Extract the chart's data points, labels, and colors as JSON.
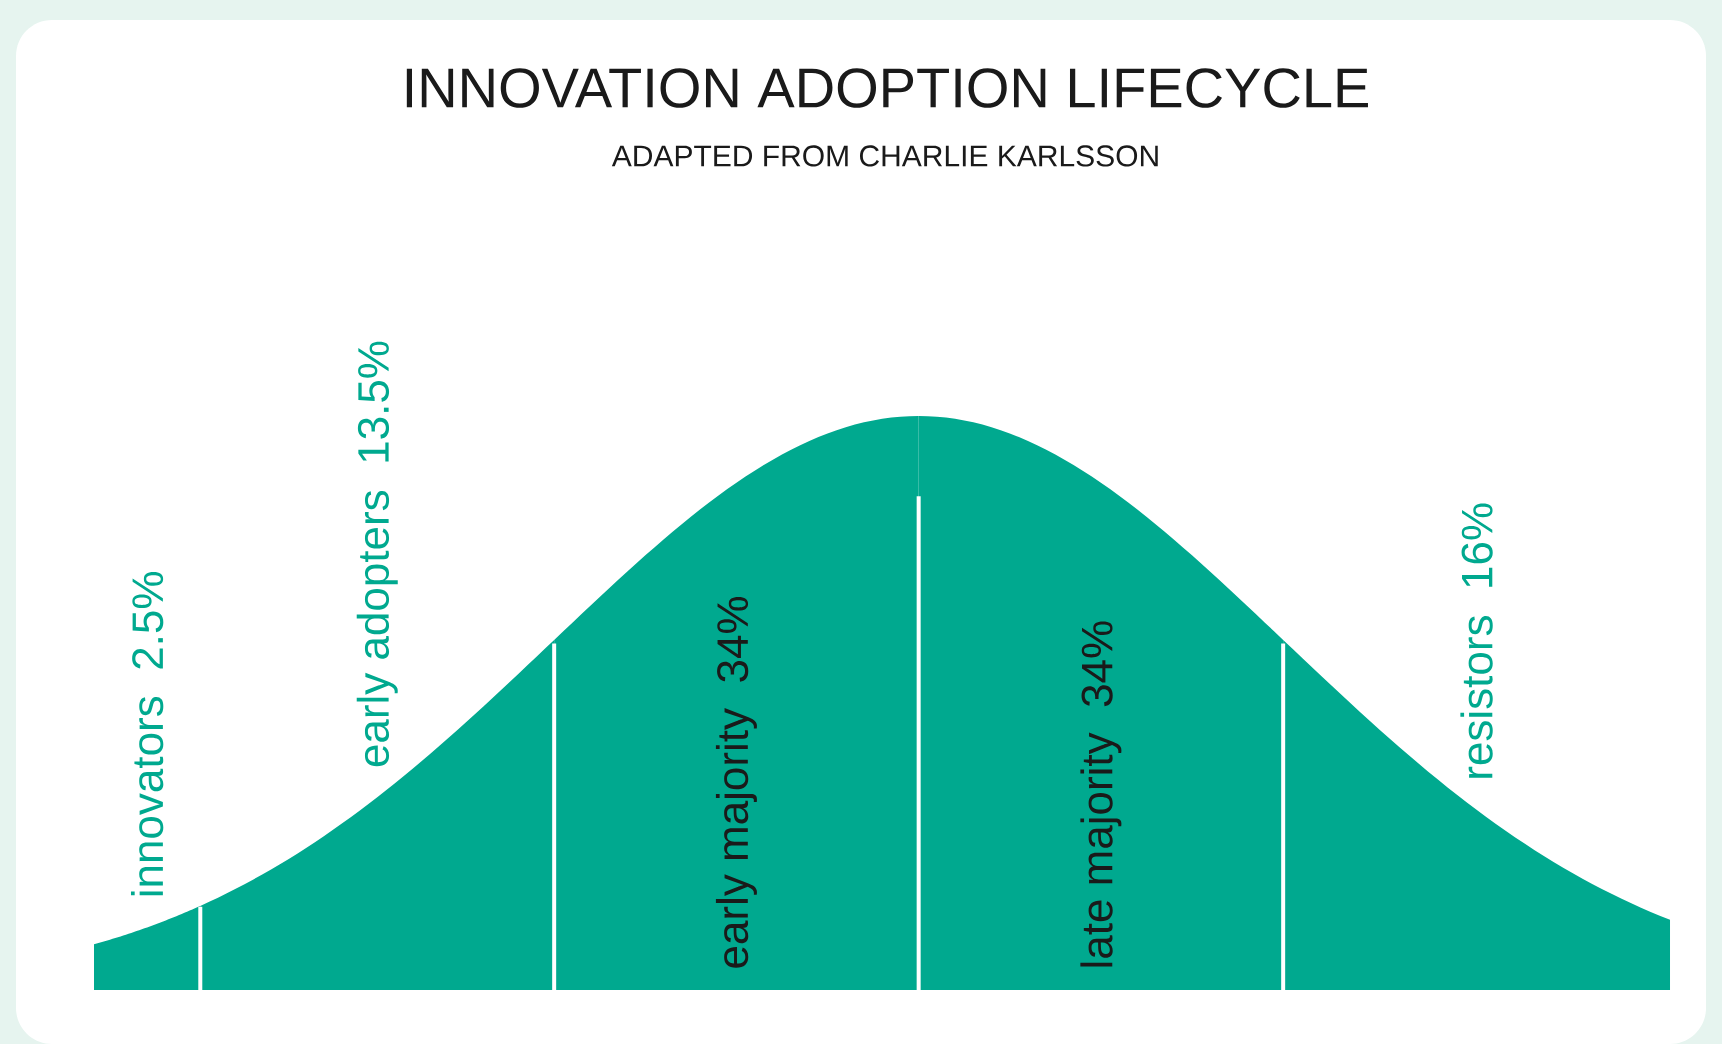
{
  "chart_data": {
    "type": "other",
    "title": "INNOVATION ADOPTION LIFECYCLE",
    "subtitle": "ADAPTED FROM CHARLIE KARLSSON",
    "categories": [
      "innovators",
      "early adopters",
      "early majority",
      "late majority",
      "resistors"
    ],
    "values": [
      2.5,
      13.5,
      34,
      34,
      16
    ],
    "value_labels": [
      "2.5%",
      "13.5%",
      "34%",
      "34%",
      "16%"
    ],
    "colors": [
      "#00a98f",
      "#00a98f",
      "#00a98f",
      "#00a98f",
      "#00a98f"
    ]
  }
}
